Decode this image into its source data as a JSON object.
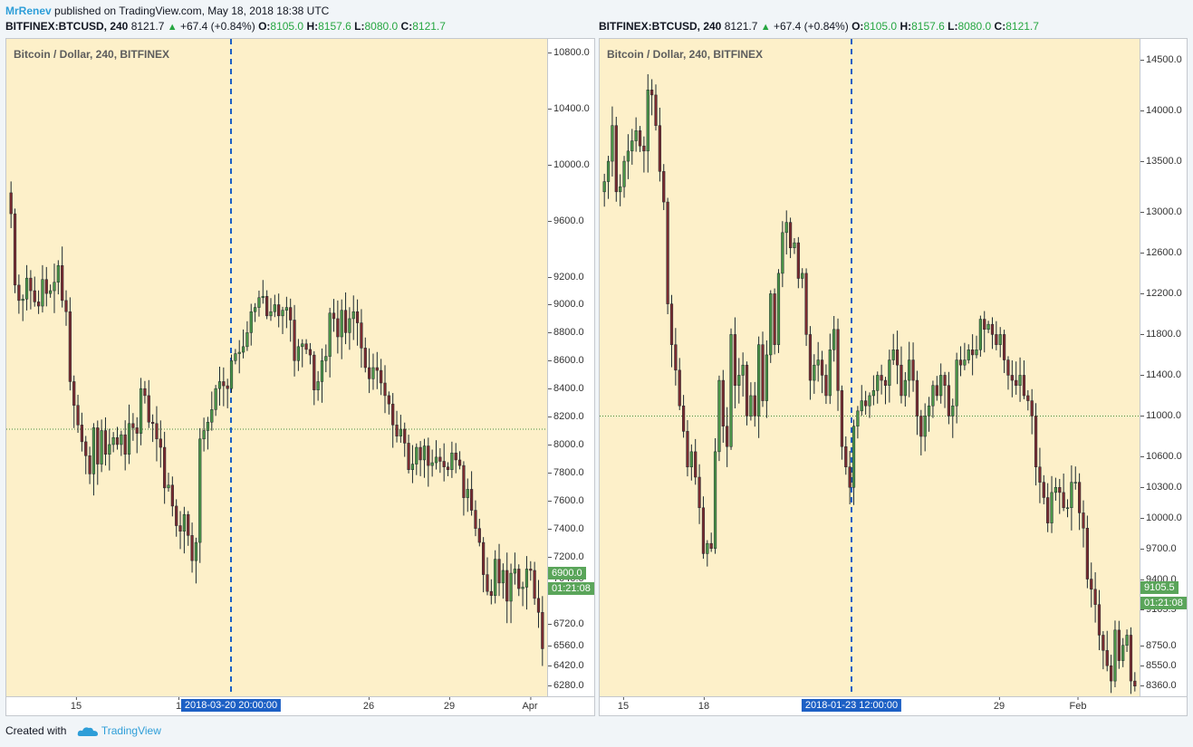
{
  "header": {
    "author": "MrRenev",
    "published": "published on TradingView.com, May 18, 2018 18:38 UTC"
  },
  "footer": {
    "created_with": "Created with",
    "brand": "TradingView"
  },
  "colors": {
    "bull": "#4a9447",
    "bear": "#7b2b30",
    "wick": "#1d2a30",
    "plot_bg": "#fdf0c9",
    "crosshair": "#1d60c5",
    "price_tag": "#5aa55a"
  },
  "panels": [
    {
      "symbol_line": {
        "symbol": "BITFINEX:BTCUSD, 240",
        "last": "8121.7",
        "change": "+67.4 (+0.84%)",
        "o_label": "O:",
        "o": "8105.0",
        "h_label": "H:",
        "h": "8157.6",
        "l_label": "L:",
        "l": "8080.0",
        "c_label": "C:",
        "c": "8121.7"
      },
      "title": "Bitcoin / Dollar, 240, BITFINEX",
      "y_ticks": [
        "10800.0",
        "10400.0",
        "10000.0",
        "9600.0",
        "9200.0",
        "9000.0",
        "8800.0",
        "8600.0",
        "8400.0",
        "8200.0",
        "8000.0",
        "7800.0",
        "7600.0",
        "7400.0",
        "7200.0",
        "7040.0",
        "6720.0",
        "6560.0",
        "6420.0",
        "6280.0"
      ],
      "x_ticks": [
        "15",
        "1",
        "26",
        "29",
        "Apr"
      ],
      "crosshair_date": "2018-03-20 20:00:00",
      "price_tag": "6900.0",
      "countdown": "01:21:08"
    },
    {
      "symbol_line": {
        "symbol": "BITFINEX:BTCUSD, 240",
        "last": "8121.7",
        "change": "+67.4 (+0.84%)",
        "o_label": "O:",
        "o": "8105.0",
        "h_label": "H:",
        "h": "8157.6",
        "l_label": "L:",
        "l": "8080.0",
        "c_label": "C:",
        "c": "8121.7"
      },
      "title": "Bitcoin / Dollar, 240, BITFINEX",
      "y_ticks": [
        "14500.0",
        "14000.0",
        "13500.0",
        "13000.0",
        "12600.0",
        "12200.0",
        "11800.0",
        "11400.0",
        "11000.0",
        "10600.0",
        "10300.0",
        "10000.0",
        "9700.0",
        "9400.0",
        "9105.5",
        "8750.0",
        "8550.0",
        "8360.0"
      ],
      "x_ticks": [
        "15",
        "18",
        "29",
        "Feb"
      ],
      "crosshair_date": "2018-01-23 12:00:00",
      "price_tag": "9105.5",
      "countdown": "01:21:08"
    }
  ],
  "chart_data": [
    {
      "type": "candlestick",
      "title": "Bitcoin / Dollar, 240, BITFINEX",
      "ylim": [
        6200,
        10900
      ],
      "x_tick_labels": [
        "15",
        "1",
        "26",
        "29",
        "Apr"
      ],
      "crosshair_y_value": 8110,
      "closes": [
        9650,
        9140,
        9030,
        9040,
        9190,
        9100,
        9020,
        8990,
        9180,
        9080,
        9100,
        9160,
        9280,
        9030,
        8950,
        8450,
        8280,
        8140,
        8020,
        7920,
        7790,
        8120,
        7860,
        8100,
        7930,
        8000,
        8050,
        8000,
        8070,
        7930,
        8150,
        8120,
        8080,
        8400,
        8350,
        8160,
        8150,
        8040,
        7980,
        7690,
        7710,
        7560,
        7420,
        7380,
        7500,
        7350,
        7170,
        7300,
        8040,
        8100,
        8160,
        8250,
        8400,
        8450,
        8420,
        8400,
        8600,
        8650,
        8660,
        8700,
        8800,
        8950,
        8980,
        9050,
        9060,
        8920,
        8950,
        9000,
        8920,
        8960,
        8980,
        8890,
        8600,
        8700,
        8720,
        8680,
        8640,
        8390,
        8450,
        8600,
        8630,
        8940,
        8900,
        8770,
        8960,
        8800,
        8900,
        8950,
        8870,
        8690,
        8550,
        8470,
        8550,
        8530,
        8440,
        8350,
        8290,
        8140,
        8060,
        8110,
        8010,
        7820,
        7860,
        7980,
        7890,
        7990,
        7850,
        7870,
        7910,
        7880,
        7840,
        7820,
        7940,
        7890,
        7850,
        7620,
        7680,
        7530,
        7400,
        7300,
        7070,
        6950,
        6920,
        7180,
        7010,
        7100,
        6880,
        7080,
        7110,
        6970,
        6980,
        7110,
        7100,
        6900,
        6800,
        6540
      ]
    },
    {
      "type": "candlestick",
      "title": "Bitcoin / Dollar, 240, BITFINEX",
      "ylim": [
        8250,
        14700
      ],
      "x_tick_labels": [
        "15",
        "18",
        "29",
        "Feb"
      ],
      "crosshair_y_value": 11000,
      "closes": [
        13300,
        13500,
        13850,
        13200,
        13250,
        13500,
        13600,
        13700,
        13800,
        13650,
        13600,
        14200,
        14150,
        13850,
        13400,
        13100,
        12100,
        11700,
        11450,
        11100,
        10850,
        10500,
        10650,
        10400,
        10100,
        9650,
        9750,
        9700,
        10650,
        11350,
        10900,
        10700,
        11800,
        11300,
        11400,
        11500,
        11000,
        11200,
        11000,
        11700,
        11150,
        11600,
        12200,
        11700,
        12400,
        12800,
        12900,
        12650,
        12700,
        12350,
        12400,
        11800,
        11350,
        11500,
        11550,
        11400,
        11200,
        11650,
        11850,
        11250,
        10700,
        10500,
        10300,
        10900,
        11050,
        11150,
        11100,
        11200,
        11250,
        11400,
        11350,
        11300,
        11550,
        11650,
        11500,
        11200,
        11350,
        11550,
        11350,
        11000,
        10800,
        11000,
        11100,
        11300,
        11200,
        11400,
        11300,
        11000,
        11100,
        11550,
        11500,
        11550,
        11650,
        11600,
        11650,
        11950,
        11850,
        11900,
        11800,
        11700,
        11800,
        11550,
        11400,
        11350,
        11300,
        11400,
        11200,
        11150,
        11000,
        10500,
        10350,
        10200,
        9950,
        10250,
        10300,
        10250,
        10100,
        10100,
        10350,
        10350,
        10050,
        9900,
        9400,
        9300,
        9150,
        8850,
        8700,
        8550,
        8400,
        8900,
        8600,
        8750,
        8850,
        8400,
        8350
      ]
    }
  ]
}
